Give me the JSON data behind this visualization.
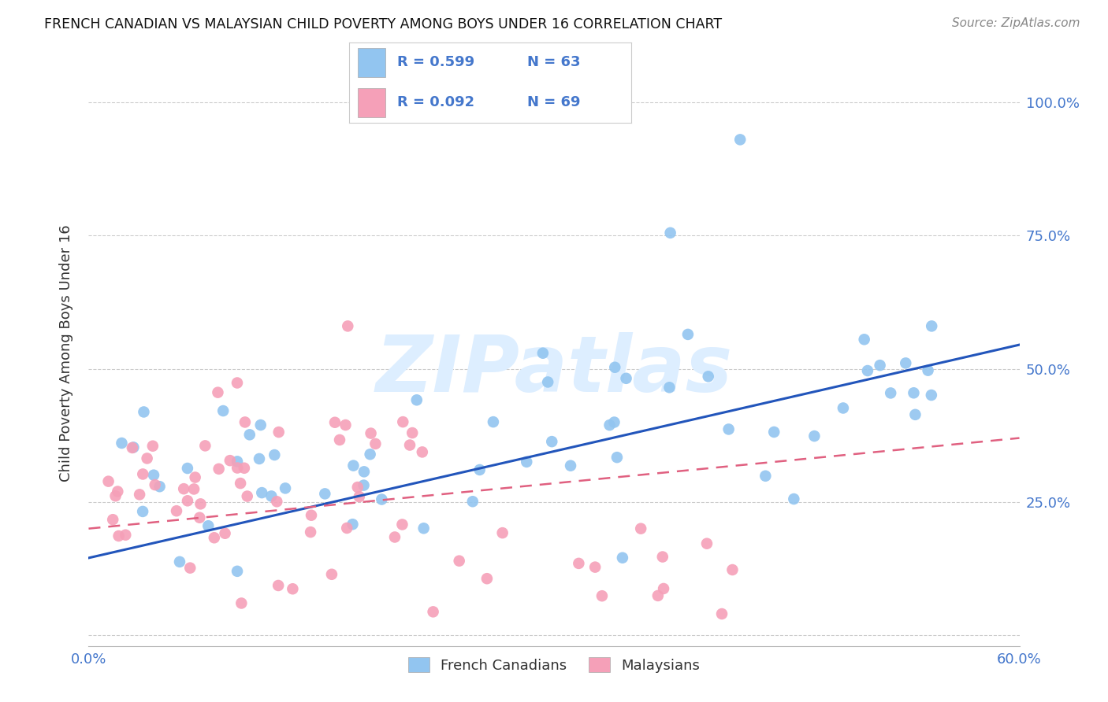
{
  "title": "FRENCH CANADIAN VS MALAYSIAN CHILD POVERTY AMONG BOYS UNDER 16 CORRELATION CHART",
  "source": "Source: ZipAtlas.com",
  "ylabel": "Child Poverty Among Boys Under 16",
  "xlim": [
    0.0,
    0.6
  ],
  "ylim": [
    -0.02,
    1.08
  ],
  "ytick_positions": [
    0.0,
    0.25,
    0.5,
    0.75,
    1.0
  ],
  "ytick_labels": [
    "",
    "25.0%",
    "50.0%",
    "75.0%",
    "100.0%"
  ],
  "xtick_positions": [
    0.0,
    0.1,
    0.2,
    0.3,
    0.4,
    0.5,
    0.6
  ],
  "xtick_labels": [
    "0.0%",
    "",
    "",
    "",
    "",
    "",
    "60.0%"
  ],
  "blue_R": 0.599,
  "blue_N": 63,
  "pink_R": 0.092,
  "pink_N": 69,
  "blue_color": "#92c5f0",
  "pink_color": "#f5a0b8",
  "blue_line_color": "#2255bb",
  "pink_line_color": "#e06080",
  "background_color": "#ffffff",
  "watermark": "ZIPatlas",
  "watermark_color": "#ddeeff",
  "grid_color": "#cccccc",
  "tick_label_color": "#4477cc",
  "title_color": "#111111",
  "source_color": "#888888",
  "ylabel_color": "#333333"
}
